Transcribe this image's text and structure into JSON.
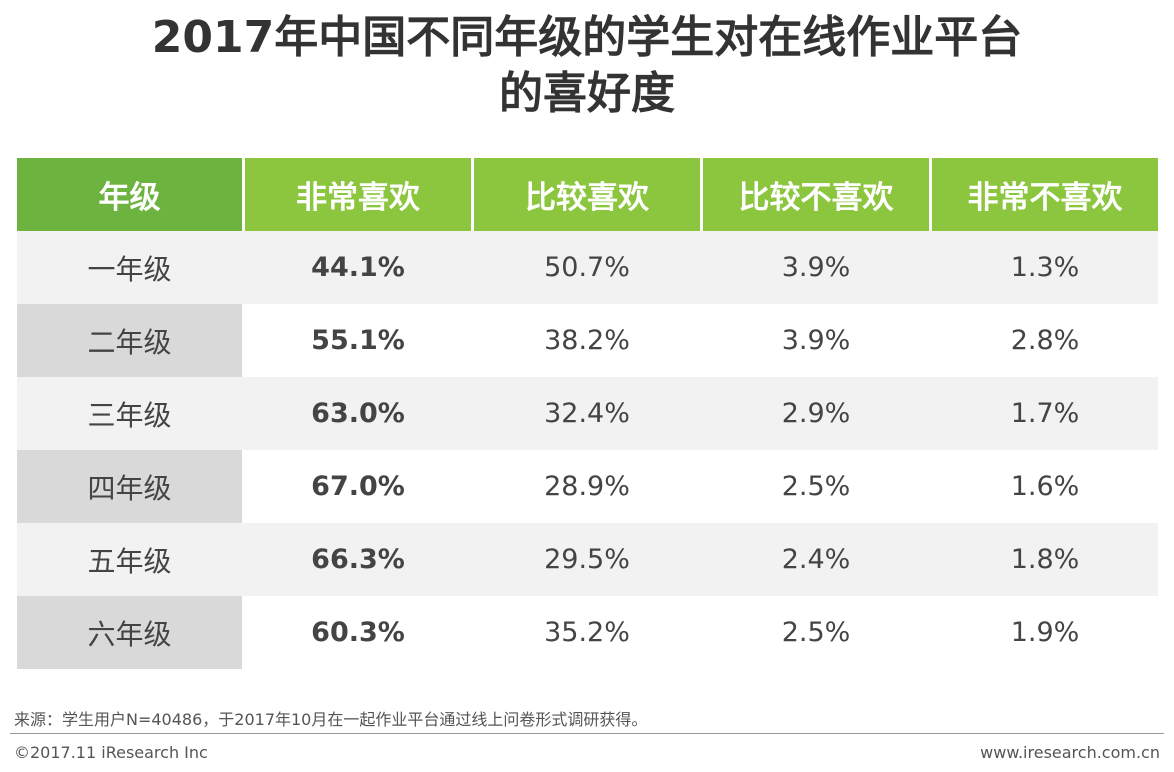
{
  "title_line1": "2017年中国不同年级的学生对在线作业平台",
  "title_line2": "的喜好度",
  "chart_data": {
    "type": "table",
    "columns": [
      "年级",
      "非常喜欢",
      "比较喜欢",
      "比较不喜欢",
      "非常不喜欢"
    ],
    "rows": [
      [
        "一年级",
        "44.1%",
        "50.7%",
        "3.9%",
        "1.3%"
      ],
      [
        "二年级",
        "55.1%",
        "38.2%",
        "3.9%",
        "2.8%"
      ],
      [
        "三年级",
        "63.0%",
        "32.4%",
        "2.9%",
        "1.7%"
      ],
      [
        "四年级",
        "67.0%",
        "28.9%",
        "2.5%",
        "1.6%"
      ],
      [
        "五年级",
        "66.3%",
        "29.5%",
        "2.4%",
        "1.8%"
      ],
      [
        "六年级",
        "60.3%",
        "35.2%",
        "2.5%",
        "1.9%"
      ]
    ]
  },
  "source": "来源：学生用户N=40486，于2017年10月在一起作业平台通过线上问卷形式调研获得。",
  "copyright": "©2017.11 iResearch Inc",
  "website": "www.iresearch.com.cn",
  "colors": {
    "header_green": "#8cc63f",
    "header_first_green": "#6db33f",
    "row_gray": "#f2f2f2",
    "label_gray": "#d9d9d9"
  }
}
